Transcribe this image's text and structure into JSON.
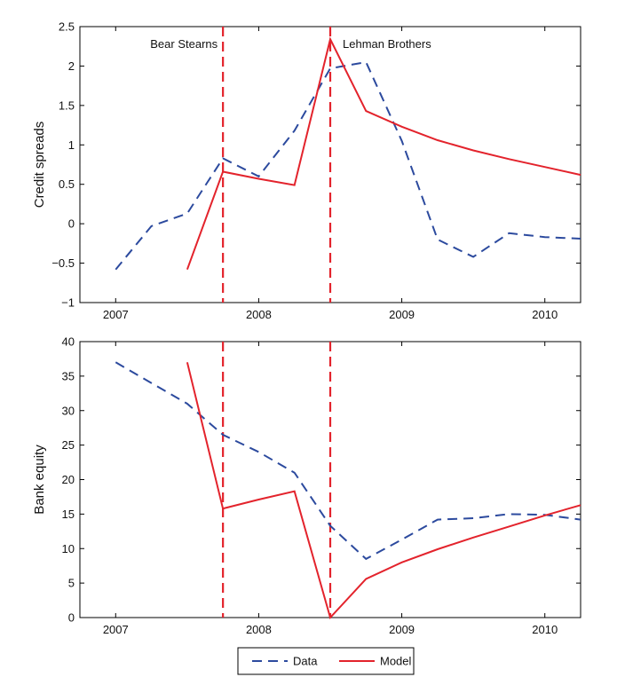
{
  "chart_data": [
    {
      "type": "line",
      "ylabel": "Credit spreads",
      "xlim": [
        2006.75,
        2010.25
      ],
      "ylim": [
        -1,
        2.5
      ],
      "xticks": [
        2007,
        2008,
        2009,
        2010
      ],
      "xtick_labels": [
        "2007",
        "2008",
        "2009",
        "2010"
      ],
      "yticks": [
        -1,
        -0.5,
        0,
        0.5,
        1,
        1.5,
        2,
        2.5
      ],
      "ytick_labels": [
        "−1",
        "−0.5",
        "0",
        "0.5",
        "1",
        "1.5",
        "2",
        "2.5"
      ],
      "grid": false,
      "series": [
        {
          "name": "Data",
          "color": "#2c4a9e",
          "dash": "dashed",
          "x": [
            2007.0,
            2007.25,
            2007.5,
            2007.75,
            2008.0,
            2008.25,
            2008.5,
            2008.75,
            2009.0,
            2009.25,
            2009.5,
            2009.75,
            2010.0,
            2010.25
          ],
          "y": [
            -0.58,
            -0.03,
            0.13,
            0.83,
            0.6,
            1.18,
            1.97,
            2.05,
            1.05,
            -0.2,
            -0.42,
            -0.12,
            -0.17,
            -0.19
          ]
        },
        {
          "name": "Model",
          "color": "#e3232c",
          "dash": "solid",
          "x": [
            2007.5,
            2007.75,
            2008.0,
            2008.25,
            2008.5,
            2008.75,
            2009.0,
            2009.25,
            2009.5,
            2009.75,
            2010.0,
            2010.25
          ],
          "y": [
            -0.58,
            0.66,
            0.57,
            0.49,
            2.34,
            1.43,
            1.23,
            1.06,
            0.93,
            0.82,
            0.72,
            0.62
          ]
        }
      ],
      "annotations": [
        {
          "label": "Bear Stearns",
          "x": 2007.75
        },
        {
          "label": "Lehman Brothers",
          "x": 2008.5
        }
      ]
    },
    {
      "type": "line",
      "ylabel": "Bank equity",
      "xlim": [
        2006.75,
        2010.25
      ],
      "ylim": [
        0,
        40
      ],
      "xticks": [
        2007,
        2008,
        2009,
        2010
      ],
      "xtick_labels": [
        "2007",
        "2008",
        "2009",
        "2010"
      ],
      "yticks": [
        0,
        5,
        10,
        15,
        20,
        25,
        30,
        35,
        40
      ],
      "ytick_labels": [
        "0",
        "5",
        "10",
        "15",
        "20",
        "25",
        "30",
        "35",
        "40"
      ],
      "grid": false,
      "series": [
        {
          "name": "Data",
          "color": "#2c4a9e",
          "dash": "dashed",
          "x": [
            2007.0,
            2007.25,
            2007.5,
            2007.75,
            2008.0,
            2008.25,
            2008.5,
            2008.75,
            2009.0,
            2009.25,
            2009.5,
            2009.75,
            2010.0,
            2010.25
          ],
          "y": [
            37,
            34,
            31,
            26.5,
            24,
            21,
            13.3,
            8.5,
            11.3,
            14.2,
            14.4,
            15,
            14.9,
            14.2
          ]
        },
        {
          "name": "Model",
          "color": "#e3232c",
          "dash": "solid",
          "x": [
            2007.5,
            2007.75,
            2008.0,
            2008.25,
            2008.5,
            2008.75,
            2009.0,
            2009.25,
            2009.5,
            2009.75,
            2010.0,
            2010.25
          ],
          "y": [
            37,
            15.8,
            17.1,
            18.3,
            0,
            5.6,
            8,
            9.9,
            11.6,
            13.2,
            14.8,
            16.3
          ]
        }
      ],
      "annotations": [
        {
          "label": "",
          "x": 2007.75
        },
        {
          "label": "",
          "x": 2008.5
        }
      ]
    }
  ],
  "legend": {
    "placement": "bottom-center",
    "entries": [
      {
        "label": "Data",
        "color": "#2c4a9e",
        "dash": "dashed"
      },
      {
        "label": "Model",
        "color": "#e3232c",
        "dash": "solid"
      }
    ]
  }
}
